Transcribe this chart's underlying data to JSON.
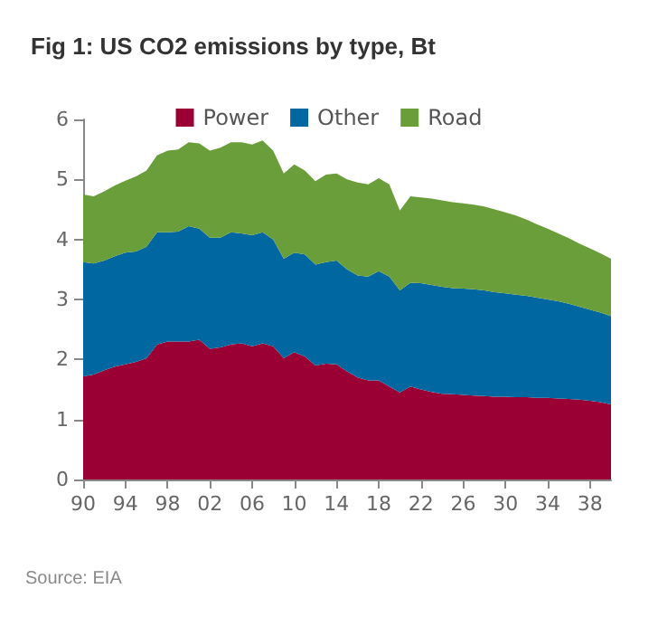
{
  "chart_data": {
    "type": "area",
    "title": "Fig 1: US CO2 emissions by type, Bt",
    "annotations": [
      "Source: EIA"
    ],
    "categories": [
      "90",
      null,
      null,
      null,
      "94",
      null,
      null,
      null,
      "98",
      null,
      null,
      null,
      "02",
      null,
      null,
      null,
      "06",
      null,
      null,
      null,
      "10",
      null,
      null,
      null,
      "14",
      null,
      null,
      null,
      "18",
      null,
      null,
      null,
      "22",
      null,
      null,
      null,
      "26",
      null,
      null,
      null,
      "30",
      null,
      null,
      null,
      "34",
      null,
      null,
      null,
      "38",
      null,
      null
    ],
    "stacked": true,
    "legend": "top",
    "grid": false,
    "ylim": [
      0,
      6
    ],
    "yticks": [
      0,
      1,
      2,
      3,
      4,
      5,
      6
    ],
    "series": [
      {
        "name": "Power",
        "color": "#9b0035",
        "values": [
          1.72,
          1.75,
          1.82,
          1.88,
          1.92,
          1.96,
          2.02,
          2.25,
          2.3,
          2.3,
          2.3,
          2.33,
          2.18,
          2.2,
          2.25,
          2.27,
          2.22,
          2.27,
          2.22,
          2.02,
          2.12,
          2.05,
          1.9,
          1.93,
          1.92,
          1.8,
          1.7,
          1.65,
          1.65,
          1.55,
          1.45,
          1.55,
          1.5,
          1.46,
          1.43,
          1.42,
          1.41,
          1.4,
          1.39,
          1.38,
          1.38,
          1.37,
          1.37,
          1.36,
          1.36,
          1.35,
          1.34,
          1.33,
          1.31,
          1.29,
          1.25
        ]
      },
      {
        "name": "Other",
        "color": "#0067a0",
        "values": [
          1.9,
          1.85,
          1.83,
          1.84,
          1.86,
          1.84,
          1.86,
          1.87,
          1.82,
          1.83,
          1.92,
          1.85,
          1.85,
          1.83,
          1.87,
          1.83,
          1.85,
          1.85,
          1.78,
          1.66,
          1.66,
          1.7,
          1.68,
          1.69,
          1.73,
          1.7,
          1.7,
          1.73,
          1.82,
          1.83,
          1.7,
          1.73,
          1.77,
          1.78,
          1.78,
          1.77,
          1.77,
          1.77,
          1.76,
          1.74,
          1.72,
          1.71,
          1.69,
          1.67,
          1.64,
          1.62,
          1.59,
          1.55,
          1.52,
          1.49,
          1.47
        ]
      },
      {
        "name": "Road",
        "color": "#6a9e3a",
        "values": [
          1.13,
          1.12,
          1.15,
          1.18,
          1.2,
          1.25,
          1.27,
          1.28,
          1.36,
          1.37,
          1.4,
          1.42,
          1.45,
          1.5,
          1.5,
          1.52,
          1.51,
          1.53,
          1.48,
          1.42,
          1.47,
          1.4,
          1.39,
          1.46,
          1.45,
          1.5,
          1.55,
          1.54,
          1.55,
          1.54,
          1.33,
          1.44,
          1.43,
          1.44,
          1.44,
          1.43,
          1.42,
          1.41,
          1.4,
          1.38,
          1.35,
          1.32,
          1.27,
          1.22,
          1.18,
          1.13,
          1.09,
          1.05,
          1.02,
          0.99,
          0.96
        ]
      }
    ]
  }
}
